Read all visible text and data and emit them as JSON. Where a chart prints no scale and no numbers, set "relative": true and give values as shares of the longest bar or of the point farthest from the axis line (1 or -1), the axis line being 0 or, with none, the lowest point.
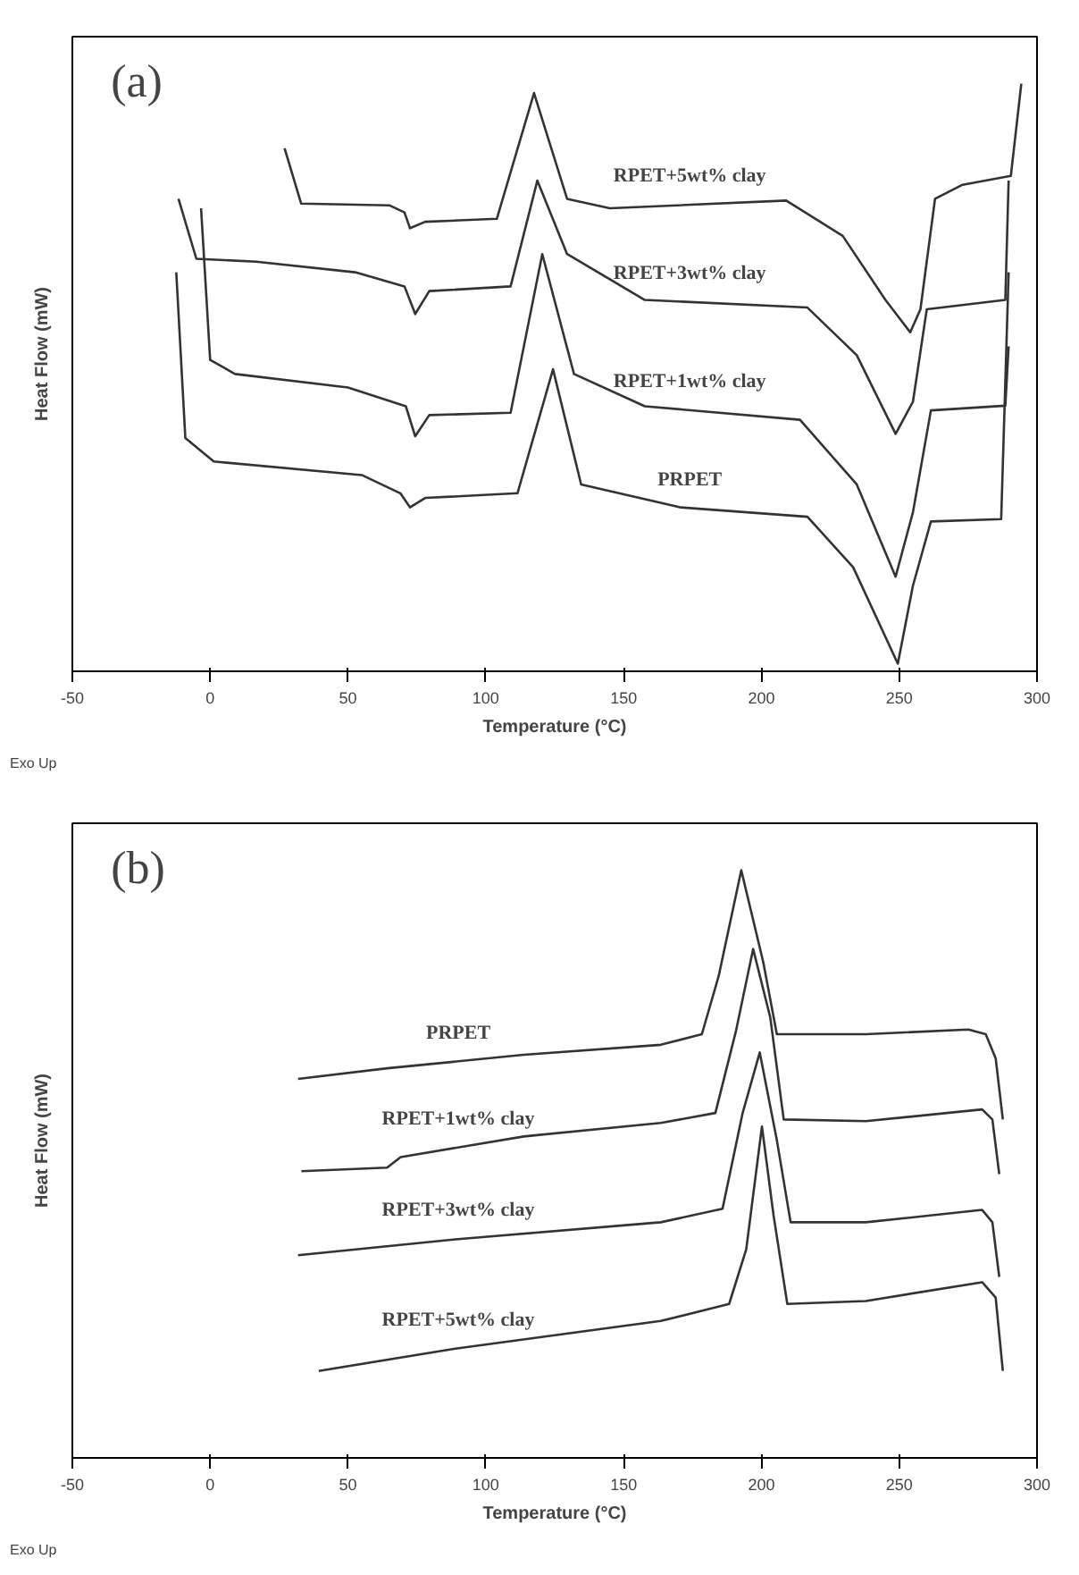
{
  "chart_data": [
    {
      "type": "line",
      "title": "(a)",
      "xlabel": "Temperature (°C)",
      "ylabel": "Heat Flow (mW)",
      "relative": true,
      "xlim": [
        -50,
        300
      ],
      "xticks": [
        -50,
        0,
        50,
        100,
        150,
        200,
        250,
        300
      ],
      "grid": false,
      "annotations": [
        "Exo Up"
      ],
      "series": [
        {
          "name": "RPET+5wt% clay",
          "color": "#333333",
          "x": [
            27,
            33,
            65,
            70.5,
            72.5,
            78,
            104,
            117.5,
            129.5,
            145,
            209,
            229.5,
            245,
            254,
            257.7,
            263,
            273,
            290.5,
            294.3
          ],
          "values": [
            0.89,
            0.796,
            0.793,
            0.781,
            0.754,
            0.765,
            0.77,
            0.984,
            0.804,
            0.788,
            0.801,
            0.741,
            0.632,
            0.577,
            0.616,
            0.804,
            0.828,
            0.843,
            1.0
          ]
        },
        {
          "name": "RPET+3wt% clay",
          "color": "#333333",
          "x": [
            -11.5,
            -5,
            16.7,
            52.6,
            70.5,
            74.4,
            79.5,
            109,
            118.7,
            129.5,
            157.7,
            216.7,
            234.6,
            248.7,
            255,
            260,
            288.5,
            289.7
          ],
          "values": [
            0.804,
            0.702,
            0.697,
            0.679,
            0.655,
            0.608,
            0.647,
            0.655,
            0.835,
            0.71,
            0.632,
            0.619,
            0.538,
            0.404,
            0.459,
            0.616,
            0.632,
            0.835
          ]
        },
        {
          "name": "RPET+1wt% clay",
          "color": "#333333",
          "x": [
            -3.3,
            0,
            9,
            50,
            71,
            74.4,
            79.5,
            109,
            120.5,
            132,
            157.7,
            214,
            234.6,
            248.7,
            255,
            261.5,
            288.5,
            289.7
          ],
          "values": [
            0.788,
            0.53,
            0.506,
            0.483,
            0.451,
            0.4,
            0.436,
            0.44,
            0.71,
            0.506,
            0.451,
            0.428,
            0.318,
            0.161,
            0.271,
            0.444,
            0.452,
            0.553
          ]
        },
        {
          "name": "PRPET",
          "color": "#333333",
          "x": [
            -12.3,
            -9,
            1.3,
            55,
            69,
            72.5,
            78,
            111.5,
            124.4,
            134.6,
            170.5,
            216.7,
            233.3,
            249.5,
            255,
            261.5,
            287,
            289.7
          ],
          "values": [
            0.679,
            0.397,
            0.357,
            0.334,
            0.303,
            0.279,
            0.295,
            0.303,
            0.514,
            0.318,
            0.279,
            0.263,
            0.177,
            0.013,
            0.146,
            0.255,
            0.259,
            0.679
          ]
        }
      ]
    },
    {
      "type": "line",
      "title": "(b)",
      "xlabel": "Temperature (°C)",
      "ylabel": "Heat Flow (mW)",
      "relative": true,
      "xlim": [
        -50,
        300
      ],
      "xticks": [
        -50,
        0,
        50,
        100,
        150,
        200,
        250,
        300
      ],
      "grid": false,
      "annotations": [
        "Exo Up"
      ],
      "series": [
        {
          "name": "PRPET",
          "color": "#333333",
          "x": [
            31.9,
            64.2,
            113.8,
            163.5,
            178.4,
            184.5,
            192.7,
            200.7,
            205.6,
            237.9,
            275.1,
            281.4,
            285,
            287.6
          ],
          "values": [
            0.645,
            0.663,
            0.686,
            0.703,
            0.721,
            0.82,
            1.0,
            0.843,
            0.721,
            0.721,
            0.729,
            0.721,
            0.68,
            0.576
          ]
        },
        {
          "name": "RPET+1wt% clay",
          "color": "#333333",
          "x": [
            33.1,
            64.2,
            69.1,
            113.8,
            163.5,
            183.3,
            190.8,
            197,
            203.2,
            208.1,
            237.9,
            280.1,
            283.8,
            286.3
          ],
          "values": [
            0.488,
            0.494,
            0.512,
            0.547,
            0.57,
            0.587,
            0.727,
            0.866,
            0.75,
            0.576,
            0.573,
            0.593,
            0.576,
            0.483
          ]
        },
        {
          "name": "RPET+3wt% clay",
          "color": "#333333",
          "x": [
            31.9,
            89,
            163.5,
            185.9,
            193.2,
            199.4,
            205.6,
            210.6,
            237.9,
            280.1,
            283.8,
            286.3
          ],
          "values": [
            0.345,
            0.372,
            0.401,
            0.424,
            0.587,
            0.69,
            0.541,
            0.401,
            0.401,
            0.422,
            0.401,
            0.308
          ]
        },
        {
          "name": "RPET+5wt% clay",
          "color": "#333333",
          "x": [
            39.4,
            89,
            163.5,
            188.3,
            194.5,
            200.2,
            204.4,
            209.4,
            237.9,
            280.1,
            285,
            287.6
          ],
          "values": [
            0.148,
            0.186,
            0.233,
            0.262,
            0.355,
            0.564,
            0.413,
            0.262,
            0.267,
            0.299,
            0.273,
            0.148
          ]
        }
      ]
    }
  ]
}
